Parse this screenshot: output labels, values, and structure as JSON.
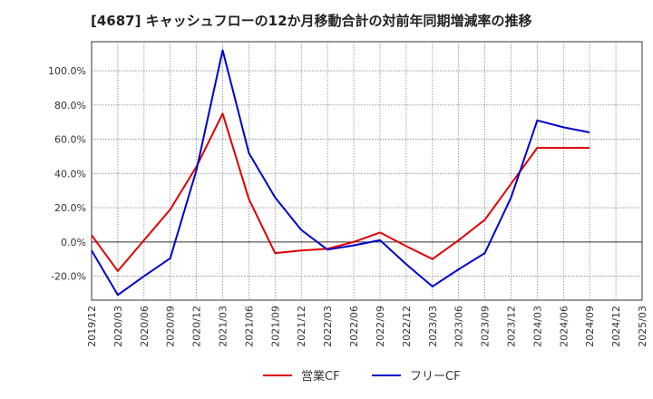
{
  "chart_data": {
    "type": "line",
    "title": "[4687]  キャッシュフローの12か月移動合計の対前年同期増減率の推移",
    "x": [
      "2019/12",
      "2020/03",
      "2020/06",
      "2020/09",
      "2020/12",
      "2021/03",
      "2021/06",
      "2021/09",
      "2021/12",
      "2022/03",
      "2022/06",
      "2022/09",
      "2022/12",
      "2023/03",
      "2023/06",
      "2023/09",
      "2023/12",
      "2024/03",
      "2024/06",
      "2024/09",
      "2024/12",
      "2025/03"
    ],
    "y_ticks": [
      "-20.0%",
      "0.0%",
      "20.0%",
      "40.0%",
      "60.0%",
      "80.0%",
      "100.0%"
    ],
    "y_tick_values": [
      -20,
      0,
      20,
      40,
      60,
      80,
      100
    ],
    "ylim": [
      -34,
      117
    ],
    "series": [
      {
        "name": "営業CF",
        "color": "#dd0000",
        "values": [
          4,
          -17,
          1,
          19,
          44,
          75,
          25,
          -6.5,
          -5,
          -4,
          0,
          5.5,
          -2.5,
          -10,
          1,
          13,
          34,
          55,
          55,
          55,
          null,
          null
        ]
      },
      {
        "name": "フリーCF",
        "color": "#0000cc",
        "values": [
          -5,
          -31,
          -20,
          -9.5,
          42,
          112,
          52,
          26,
          7,
          -4.5,
          -2,
          1,
          -13,
          -26,
          -16,
          -6.5,
          26,
          71,
          67,
          64,
          null,
          null
        ]
      }
    ],
    "grid": true,
    "legend_position": "bottom"
  }
}
